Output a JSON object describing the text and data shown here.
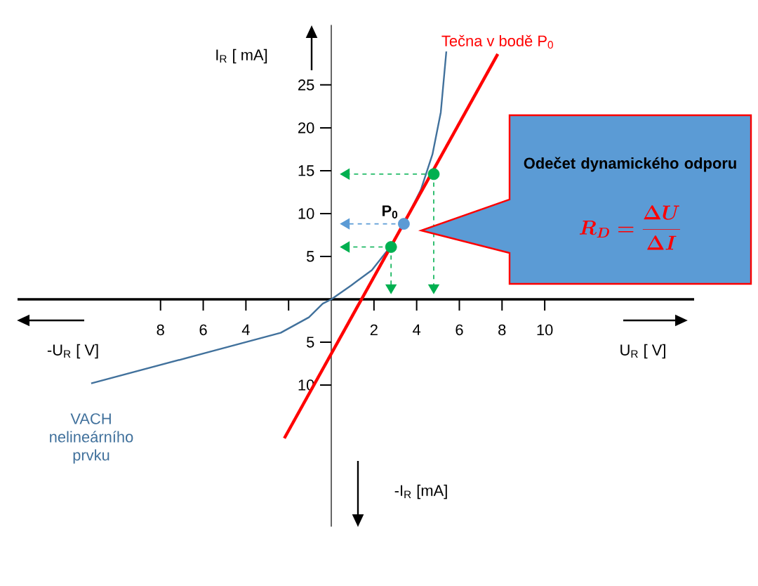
{
  "chart_data": {
    "type": "line",
    "xlabel": "U$_{R}$ [ V]",
    "ylabel": "I$_{R}$ [ mA]",
    "annotations": [
      "-U$_{R}$ [ V]",
      "-I$_{R}$ [mA]",
      "Odečet dynamického odporu",
      "R_D = \\frac{\\Delta U}{\\Delta I}",
      {
        "text": "P$_{0}$",
        "x": 3.4,
        "y": 8.8
      }
    ],
    "xlim": [
      -14.7,
      17
    ],
    "ylim": [
      -26.5,
      32
    ],
    "xticks": [
      {
        "value": -8,
        "label": "8"
      },
      {
        "value": -6,
        "label": "6"
      },
      {
        "value": -4,
        "label": "4"
      },
      {
        "value": -2,
        "label": null
      },
      2,
      4,
      6,
      8,
      10
    ],
    "yticks": [
      {
        "value": -10,
        "label": "10"
      },
      {
        "value": -5,
        "label": "5"
      },
      5,
      10,
      15,
      20,
      25
    ],
    "series": [
      {
        "name": "VACH nelineárního prvku",
        "color": "#41719c",
        "x": [
          -11.25,
          -5.66,
          -2.37,
          -1.05,
          -0.4,
          0,
          0.92,
          1.9,
          2.76,
          3.42,
          4.2,
          4.74,
          5.13,
          5.39
        ],
        "values": [
          -9.8,
          -6.1,
          -3.9,
          -2.1,
          -0.5,
          0,
          1.6,
          3.4,
          6.1,
          8.9,
          12.8,
          16.9,
          21.8,
          28.9
        ]
      },
      {
        "name": "Tečna v bodě P$_{0}$",
        "color": "#ff0000",
        "x": [
          -2.2,
          7.8
        ],
        "values": [
          -16.2,
          28.6
        ]
      },
      {
        "type": "scatter",
        "color": "#00b050",
        "x": [
          2.8,
          4.8
        ],
        "values": [
          6.1,
          14.6
        ]
      },
      {
        "type": "scatter",
        "color": "#5b9bd5",
        "x": [
          3.4
        ],
        "values": [
          8.8
        ]
      }
    ],
    "grid": false
  }
}
